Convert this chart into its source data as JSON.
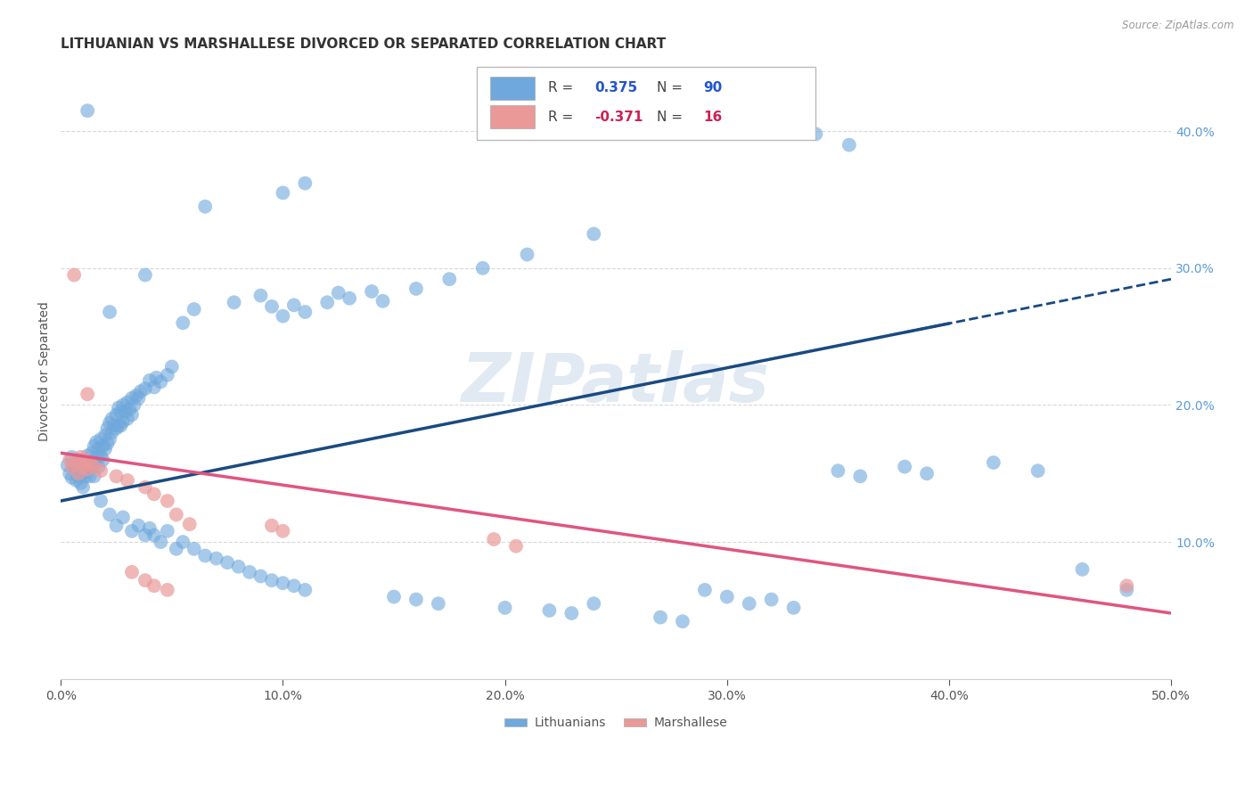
{
  "title": "LITHUANIAN VS MARSHALLESE DIVORCED OR SEPARATED CORRELATION CHART",
  "source": "Source: ZipAtlas.com",
  "ylabel": "Divorced or Separated",
  "xlim": [
    0.0,
    0.5
  ],
  "ylim": [
    0.0,
    0.45
  ],
  "xticks": [
    0.0,
    0.1,
    0.2,
    0.3,
    0.4,
    0.5
  ],
  "yticks": [
    0.1,
    0.2,
    0.3,
    0.4
  ],
  "blue_color": "#6fa8dc",
  "pink_color": "#ea9999",
  "blue_line_color": "#1a4a80",
  "pink_line_color": "#e05580",
  "blue_scatter": [
    [
      0.003,
      0.156
    ],
    [
      0.004,
      0.15
    ],
    [
      0.005,
      0.162
    ],
    [
      0.005,
      0.147
    ],
    [
      0.006,
      0.155
    ],
    [
      0.007,
      0.158
    ],
    [
      0.007,
      0.145
    ],
    [
      0.008,
      0.16
    ],
    [
      0.008,
      0.148
    ],
    [
      0.009,
      0.155
    ],
    [
      0.009,
      0.143
    ],
    [
      0.01,
      0.158
    ],
    [
      0.01,
      0.15
    ],
    [
      0.01,
      0.14
    ],
    [
      0.011,
      0.155
    ],
    [
      0.011,
      0.148
    ],
    [
      0.012,
      0.163
    ],
    [
      0.012,
      0.152
    ],
    [
      0.013,
      0.158
    ],
    [
      0.013,
      0.148
    ],
    [
      0.014,
      0.165
    ],
    [
      0.014,
      0.155
    ],
    [
      0.015,
      0.17
    ],
    [
      0.015,
      0.158
    ],
    [
      0.015,
      0.148
    ],
    [
      0.016,
      0.173
    ],
    [
      0.016,
      0.162
    ],
    [
      0.017,
      0.168
    ],
    [
      0.017,
      0.155
    ],
    [
      0.018,
      0.175
    ],
    [
      0.018,
      0.163
    ],
    [
      0.019,
      0.17
    ],
    [
      0.019,
      0.16
    ],
    [
      0.02,
      0.178
    ],
    [
      0.02,
      0.168
    ],
    [
      0.021,
      0.183
    ],
    [
      0.021,
      0.172
    ],
    [
      0.022,
      0.187
    ],
    [
      0.022,
      0.175
    ],
    [
      0.023,
      0.19
    ],
    [
      0.023,
      0.18
    ],
    [
      0.024,
      0.185
    ],
    [
      0.025,
      0.193
    ],
    [
      0.025,
      0.183
    ],
    [
      0.026,
      0.198
    ],
    [
      0.026,
      0.185
    ],
    [
      0.027,
      0.195
    ],
    [
      0.027,
      0.185
    ],
    [
      0.028,
      0.2
    ],
    [
      0.028,
      0.188
    ],
    [
      0.029,
      0.195
    ],
    [
      0.03,
      0.202
    ],
    [
      0.03,
      0.19
    ],
    [
      0.031,
      0.197
    ],
    [
      0.032,
      0.205
    ],
    [
      0.032,
      0.193
    ],
    [
      0.033,
      0.2
    ],
    [
      0.034,
      0.207
    ],
    [
      0.035,
      0.205
    ],
    [
      0.036,
      0.21
    ],
    [
      0.038,
      0.212
    ],
    [
      0.04,
      0.218
    ],
    [
      0.042,
      0.213
    ],
    [
      0.043,
      0.22
    ],
    [
      0.045,
      0.217
    ],
    [
      0.048,
      0.222
    ],
    [
      0.05,
      0.228
    ],
    [
      0.022,
      0.268
    ],
    [
      0.038,
      0.295
    ],
    [
      0.055,
      0.26
    ],
    [
      0.06,
      0.27
    ],
    [
      0.065,
      0.345
    ],
    [
      0.1,
      0.355
    ],
    [
      0.11,
      0.362
    ],
    [
      0.078,
      0.275
    ],
    [
      0.09,
      0.28
    ],
    [
      0.095,
      0.272
    ],
    [
      0.1,
      0.265
    ],
    [
      0.105,
      0.273
    ],
    [
      0.11,
      0.268
    ],
    [
      0.12,
      0.275
    ],
    [
      0.125,
      0.282
    ],
    [
      0.13,
      0.278
    ],
    [
      0.14,
      0.283
    ],
    [
      0.145,
      0.276
    ],
    [
      0.16,
      0.285
    ],
    [
      0.175,
      0.292
    ],
    [
      0.19,
      0.3
    ],
    [
      0.21,
      0.31
    ],
    [
      0.24,
      0.325
    ],
    [
      0.012,
      0.415
    ],
    [
      0.018,
      0.13
    ],
    [
      0.022,
      0.12
    ],
    [
      0.025,
      0.112
    ],
    [
      0.028,
      0.118
    ],
    [
      0.032,
      0.108
    ],
    [
      0.035,
      0.112
    ],
    [
      0.038,
      0.105
    ],
    [
      0.04,
      0.11
    ],
    [
      0.042,
      0.105
    ],
    [
      0.045,
      0.1
    ],
    [
      0.048,
      0.108
    ],
    [
      0.052,
      0.095
    ],
    [
      0.055,
      0.1
    ],
    [
      0.06,
      0.095
    ],
    [
      0.065,
      0.09
    ],
    [
      0.07,
      0.088
    ],
    [
      0.075,
      0.085
    ],
    [
      0.08,
      0.082
    ],
    [
      0.085,
      0.078
    ],
    [
      0.09,
      0.075
    ],
    [
      0.095,
      0.072
    ],
    [
      0.1,
      0.07
    ],
    [
      0.105,
      0.068
    ],
    [
      0.11,
      0.065
    ],
    [
      0.15,
      0.06
    ],
    [
      0.16,
      0.058
    ],
    [
      0.17,
      0.055
    ],
    [
      0.2,
      0.052
    ],
    [
      0.22,
      0.05
    ],
    [
      0.23,
      0.048
    ],
    [
      0.24,
      0.055
    ],
    [
      0.27,
      0.045
    ],
    [
      0.28,
      0.042
    ],
    [
      0.29,
      0.065
    ],
    [
      0.3,
      0.06
    ],
    [
      0.31,
      0.055
    ],
    [
      0.32,
      0.058
    ],
    [
      0.33,
      0.052
    ],
    [
      0.35,
      0.152
    ],
    [
      0.36,
      0.148
    ],
    [
      0.38,
      0.155
    ],
    [
      0.39,
      0.15
    ],
    [
      0.42,
      0.158
    ],
    [
      0.44,
      0.152
    ],
    [
      0.46,
      0.08
    ],
    [
      0.48,
      0.065
    ],
    [
      0.34,
      0.398
    ],
    [
      0.355,
      0.39
    ]
  ],
  "pink_scatter": [
    [
      0.004,
      0.16
    ],
    [
      0.005,
      0.155
    ],
    [
      0.007,
      0.158
    ],
    [
      0.008,
      0.15
    ],
    [
      0.009,
      0.162
    ],
    [
      0.01,
      0.155
    ],
    [
      0.011,
      0.16
    ],
    [
      0.012,
      0.153
    ],
    [
      0.013,
      0.158
    ],
    [
      0.015,
      0.155
    ],
    [
      0.018,
      0.152
    ],
    [
      0.006,
      0.295
    ],
    [
      0.012,
      0.208
    ],
    [
      0.025,
      0.148
    ],
    [
      0.03,
      0.145
    ],
    [
      0.038,
      0.14
    ],
    [
      0.042,
      0.135
    ],
    [
      0.048,
      0.13
    ],
    [
      0.052,
      0.12
    ],
    [
      0.058,
      0.113
    ],
    [
      0.095,
      0.112
    ],
    [
      0.1,
      0.108
    ],
    [
      0.195,
      0.102
    ],
    [
      0.205,
      0.097
    ],
    [
      0.032,
      0.078
    ],
    [
      0.038,
      0.072
    ],
    [
      0.042,
      0.068
    ],
    [
      0.048,
      0.065
    ],
    [
      0.48,
      0.068
    ]
  ],
  "blue_line_x": [
    0.0,
    0.5
  ],
  "blue_line_y": [
    0.13,
    0.292
  ],
  "pink_line_x": [
    0.0,
    0.5
  ],
  "pink_line_y": [
    0.165,
    0.048
  ],
  "background_color": "#ffffff",
  "grid_color": "#d8d8d8",
  "title_fontsize": 11,
  "label_fontsize": 10,
  "tick_fontsize": 10,
  "legend_fontsize": 11
}
